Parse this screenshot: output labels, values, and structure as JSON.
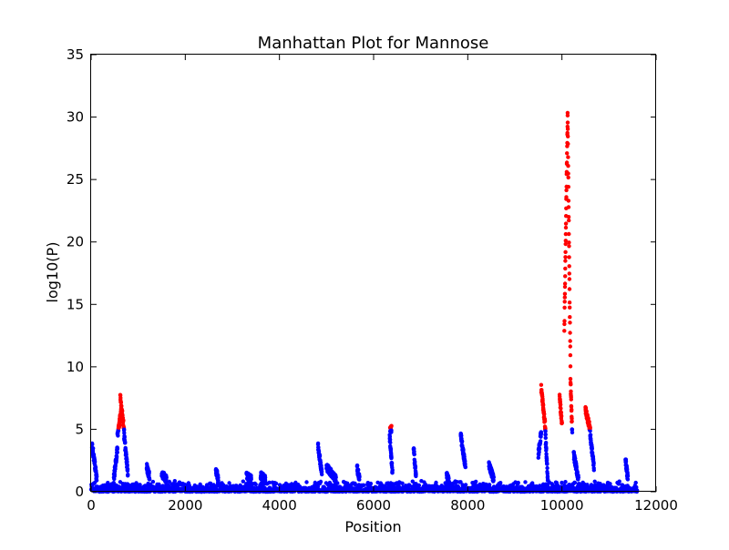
{
  "chart_data": {
    "type": "scatter",
    "title": "Manhattan Plot for Mannose",
    "xlabel": "Position",
    "ylabel": "log10(P)",
    "xlim": [
      0,
      12000
    ],
    "ylim": [
      0,
      35
    ],
    "xticks": [
      "0",
      "2000",
      "4000",
      "6000",
      "8000",
      "10000",
      "12000"
    ],
    "yticks": [
      "0",
      "5",
      "10",
      "15",
      "20",
      "25",
      "30",
      "35"
    ],
    "grid": false,
    "legend": "none",
    "threshold_note": "points with log10(P) >= 5 drawn red, others blue",
    "colors": {
      "below": "#0000ff",
      "above": "#ff0000"
    },
    "peaks": [
      {
        "x": [
          20,
          120
        ],
        "y": [
          3.8,
          1.0
        ]
      },
      {
        "x": [
          480,
          560
        ],
        "y": [
          1.0,
          3.5
        ]
      },
      {
        "x": [
          560,
          640
        ],
        "y": [
          4.5,
          6.5
        ]
      },
      {
        "x": [
          620,
          700
        ],
        "y": [
          7.5,
          5.0
        ]
      },
      {
        "x": [
          700,
          780
        ],
        "y": [
          4.5,
          1.5
        ]
      },
      {
        "x": [
          1180,
          1240
        ],
        "y": [
          2.0,
          1.2
        ]
      },
      {
        "x": [
          1500,
          1600
        ],
        "y": [
          1.4,
          1.0
        ]
      },
      {
        "x": [
          2650,
          2700
        ],
        "y": [
          1.7,
          1.0
        ]
      },
      {
        "x": [
          3300,
          3400
        ],
        "y": [
          1.3,
          1.0
        ]
      },
      {
        "x": [
          3600,
          3700
        ],
        "y": [
          1.3,
          1.0
        ]
      },
      {
        "x": [
          4820,
          4900
        ],
        "y": [
          3.7,
          1.5
        ]
      },
      {
        "x": [
          5000,
          5200
        ],
        "y": [
          2.0,
          1.0
        ]
      },
      {
        "x": [
          5650,
          5700
        ],
        "y": [
          1.9,
          1.0
        ]
      },
      {
        "x": [
          6350,
          6380
        ],
        "y": [
          5.1,
          5.0
        ]
      },
      {
        "x": [
          6340,
          6400
        ],
        "y": [
          4.5,
          1.5
        ]
      },
      {
        "x": [
          6850,
          6900
        ],
        "y": [
          3.5,
          1.2
        ]
      },
      {
        "x": [
          7550,
          7600
        ],
        "y": [
          1.4,
          0.8
        ]
      },
      {
        "x": [
          7850,
          7950
        ],
        "y": [
          4.5,
          2.0
        ]
      },
      {
        "x": [
          8450,
          8550
        ],
        "y": [
          2.2,
          1.0
        ]
      },
      {
        "x": [
          9500,
          9560
        ],
        "y": [
          3.0,
          4.8
        ]
      },
      {
        "x": [
          9560,
          9650
        ],
        "y": [
          8.3,
          5.0
        ]
      },
      {
        "x": [
          9650,
          9700
        ],
        "y": [
          4.5,
          1.0
        ]
      },
      {
        "x": [
          9950,
          10000
        ],
        "y": [
          7.5,
          5.5
        ]
      },
      {
        "x": [
          10050,
          10120
        ],
        "y": [
          13.0,
          30.0
        ]
      },
      {
        "x": [
          10120,
          10180
        ],
        "y": [
          30.3,
          10.0
        ]
      },
      {
        "x": [
          10180,
          10220
        ],
        "y": [
          9.0,
          4.5
        ]
      },
      {
        "x": [
          10250,
          10350
        ],
        "y": [
          3.0,
          1.0
        ]
      },
      {
        "x": [
          10500,
          10600
        ],
        "y": [
          6.6,
          5.0
        ]
      },
      {
        "x": [
          10600,
          10680
        ],
        "y": [
          4.5,
          2.0
        ]
      },
      {
        "x": [
          11350,
          11400
        ],
        "y": [
          2.6,
          1.0
        ]
      }
    ]
  }
}
